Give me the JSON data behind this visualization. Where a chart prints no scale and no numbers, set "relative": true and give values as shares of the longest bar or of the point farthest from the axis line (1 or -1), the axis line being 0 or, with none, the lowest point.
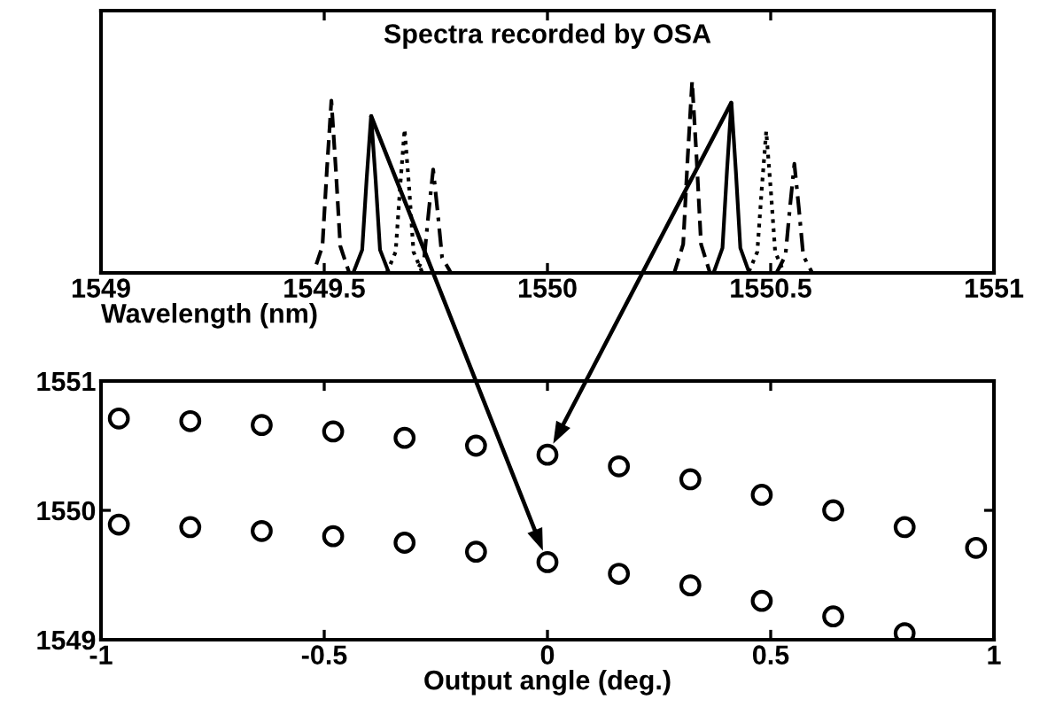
{
  "chart_data": [
    {
      "type": "line",
      "title": "Spectra recorded by OSA",
      "xlabel": "Wavelength (nm)",
      "relative": true,
      "xlim": [
        1549,
        1551
      ],
      "xticks": [
        1549,
        1549.5,
        1550,
        1550.5,
        1551
      ],
      "tick_labels": "x",
      "grid": false,
      "series": [
        {
          "color": "#000000",
          "line_style": "dashed",
          "x": [
            1549,
            1549.476,
            1549.496,
            1549.506,
            1549.516,
            1549.526,
            1549.536,
            1549.556,
            1550.284,
            1550.304,
            1550.314,
            1550.324,
            1550.334,
            1550.344,
            1550.364,
            1551
          ],
          "values": [
            0,
            0,
            0.14,
            0.54,
            0.9,
            0.54,
            0.14,
            0,
            0,
            0.15,
            0.6,
            1.0,
            0.6,
            0.15,
            0,
            0
          ]
        },
        {
          "color": "#000000",
          "line_style": "solid",
          "x": [
            1549,
            1549.565,
            1549.585,
            1549.595,
            1549.605,
            1549.615,
            1549.625,
            1549.645,
            1550.372,
            1550.392,
            1550.402,
            1550.412,
            1550.422,
            1550.432,
            1550.452,
            1551
          ],
          "values": [
            0,
            0,
            0.12,
            0.49,
            0.82,
            0.49,
            0.12,
            0,
            0,
            0.13,
            0.53,
            0.89,
            0.53,
            0.13,
            0,
            0
          ]
        },
        {
          "color": "#000000",
          "line_style": "dotted",
          "x": [
            1549,
            1549.64,
            1549.66,
            1549.67,
            1549.68,
            1549.69,
            1549.7,
            1549.72,
            1550.45,
            1550.47,
            1550.48,
            1550.49,
            1550.5,
            1550.51,
            1550.53,
            1551
          ],
          "values": [
            0,
            0,
            0.11,
            0.45,
            0.75,
            0.45,
            0.11,
            0,
            0,
            0.11,
            0.44,
            0.74,
            0.44,
            0.11,
            0,
            0
          ]
        },
        {
          "color": "#000000",
          "line_style": "dashdot",
          "x": [
            1549,
            1549.704,
            1549.724,
            1549.734,
            1549.744,
            1549.754,
            1549.764,
            1549.784,
            1550.513,
            1550.533,
            1550.543,
            1550.553,
            1550.563,
            1550.573,
            1550.593,
            1551
          ],
          "values": [
            0,
            0,
            0.08,
            0.32,
            0.54,
            0.32,
            0.08,
            0,
            0,
            0.09,
            0.34,
            0.57,
            0.34,
            0.09,
            0,
            0
          ]
        }
      ]
    },
    {
      "type": "scatter",
      "xlabel": "Output angle (deg.)",
      "marker": "circle",
      "xlim": [
        -1,
        1
      ],
      "xticks": [
        -1,
        -0.5,
        0,
        0.5,
        1
      ],
      "ylim": [
        1549,
        1551
      ],
      "yticks": [
        1549,
        1550,
        1551
      ],
      "grid": false,
      "series": [
        {
          "color": "#000000",
          "x": [
            -0.96,
            -0.8,
            -0.64,
            -0.48,
            -0.32,
            -0.16,
            0,
            0.16,
            0.32,
            0.48,
            0.64,
            0.8,
            0.96
          ],
          "values": [
            1550.71,
            1550.69,
            1550.66,
            1550.61,
            1550.56,
            1550.5,
            1550.43,
            1550.34,
            1550.24,
            1550.12,
            1550.0,
            1549.87,
            1549.71
          ]
        },
        {
          "color": "#000000",
          "x": [
            -0.96,
            -0.8,
            -0.64,
            -0.48,
            -0.32,
            -0.16,
            0,
            0.16,
            0.32,
            0.48,
            0.64,
            0.8
          ],
          "values": [
            1549.89,
            1549.87,
            1549.84,
            1549.8,
            1549.75,
            1549.68,
            1549.6,
            1549.51,
            1549.42,
            1549.3,
            1549.18,
            1549.05
          ]
        }
      ]
    }
  ]
}
